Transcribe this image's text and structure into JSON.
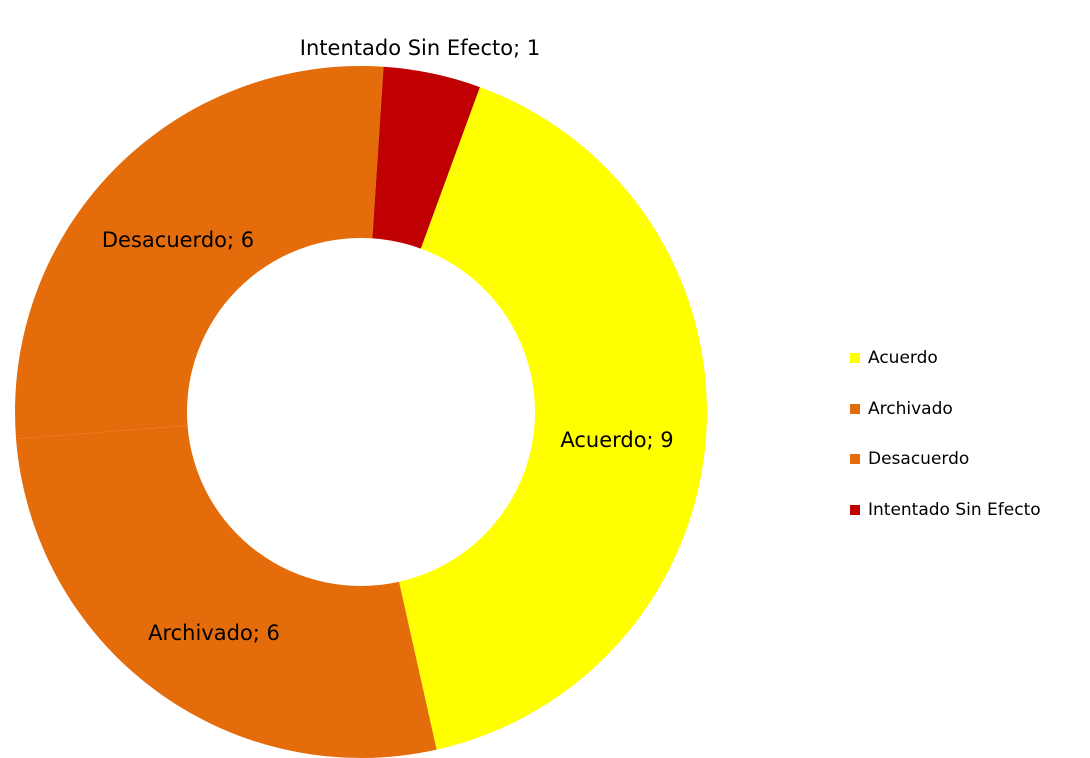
{
  "chart_data": {
    "type": "donut",
    "categories": [
      "Acuerdo",
      "Archivado",
      "Desacuerdo",
      "Intentado Sin Efecto"
    ],
    "values": [
      9,
      6,
      6,
      1
    ],
    "value_labels": [
      "Acuerdo; 9",
      "Archivado; 6",
      "Desacuerdo; 6",
      "Intentado Sin Efecto; 1"
    ],
    "colors": [
      "#ffff00",
      "#e46c0a",
      "#e46c0a",
      "#c00000"
    ],
    "legend": "right"
  }
}
